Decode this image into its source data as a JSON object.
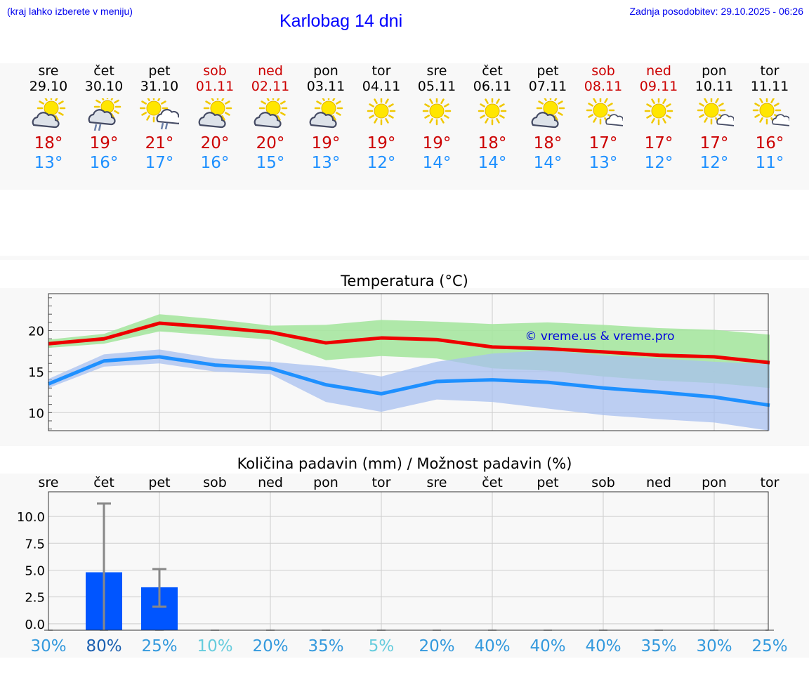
{
  "header": {
    "region_hint": "(kraj lahko izberete v meniju)",
    "title": "Karlobag 14 dni",
    "last_update": "Zadnja posodobitev: 29.10.2025 - 06:26"
  },
  "colors": {
    "link": "#0000ee",
    "weekend": "#cc0000",
    "max_line": "#ee0000",
    "min_line": "#1e90ff",
    "max_band": "#a6e6a0",
    "min_band": "#a8c0f0",
    "rain_bar": "#0055ff"
  },
  "days": [
    {
      "name": "sre",
      "date": "29.10",
      "weekend": false,
      "icon": "partly-cloudy-icon",
      "tmax": "18°",
      "tmin": "13°"
    },
    {
      "name": "čet",
      "date": "30.10",
      "weekend": false,
      "icon": "cloudy-rain-icon",
      "tmax": "19°",
      "tmin": "16°"
    },
    {
      "name": "pet",
      "date": "31.10",
      "weekend": false,
      "icon": "sun-cloud-rain-icon",
      "tmax": "21°",
      "tmin": "17°"
    },
    {
      "name": "sob",
      "date": "01.11",
      "weekend": true,
      "icon": "partly-cloudy-icon",
      "tmax": "20°",
      "tmin": "16°"
    },
    {
      "name": "ned",
      "date": "02.11",
      "weekend": true,
      "icon": "partly-cloudy-icon",
      "tmax": "20°",
      "tmin": "15°"
    },
    {
      "name": "pon",
      "date": "03.11",
      "weekend": false,
      "icon": "partly-cloudy-icon",
      "tmax": "19°",
      "tmin": "13°"
    },
    {
      "name": "tor",
      "date": "04.11",
      "weekend": false,
      "icon": "sun-icon",
      "tmax": "19°",
      "tmin": "12°"
    },
    {
      "name": "sre",
      "date": "05.11",
      "weekend": false,
      "icon": "sun-icon",
      "tmax": "19°",
      "tmin": "14°"
    },
    {
      "name": "čet",
      "date": "06.11",
      "weekend": false,
      "icon": "sun-icon",
      "tmax": "18°",
      "tmin": "14°"
    },
    {
      "name": "pet",
      "date": "07.11",
      "weekend": false,
      "icon": "partly-cloudy-icon",
      "tmax": "18°",
      "tmin": "14°"
    },
    {
      "name": "sob",
      "date": "08.11",
      "weekend": true,
      "icon": "sun-small-cloud-icon",
      "tmax": "17°",
      "tmin": "13°"
    },
    {
      "name": "ned",
      "date": "09.11",
      "weekend": true,
      "icon": "sun-icon",
      "tmax": "17°",
      "tmin": "12°"
    },
    {
      "name": "pon",
      "date": "10.11",
      "weekend": false,
      "icon": "sun-small-cloud-icon",
      "tmax": "17°",
      "tmin": "12°"
    },
    {
      "name": "tor",
      "date": "11.11",
      "weekend": false,
      "icon": "sun-small-cloud-icon",
      "tmax": "16°",
      "tmin": "11°"
    }
  ],
  "chart_data": [
    {
      "type": "line",
      "title": "Temperatura (°C)",
      "watermark": "© vreme.us & vreme.pro",
      "x_count": 14,
      "ylim": [
        7.8,
        24.5
      ],
      "yticks": [
        10,
        15,
        20
      ],
      "grid": true,
      "series": [
        {
          "name": "max",
          "values": [
            18.4,
            19.0,
            20.9,
            20.4,
            19.8,
            18.5,
            19.1,
            18.9,
            18.0,
            17.8,
            17.4,
            17.0,
            16.8,
            16.1
          ]
        },
        {
          "name": "min",
          "values": [
            13.5,
            16.3,
            16.8,
            15.8,
            15.4,
            13.4,
            12.3,
            13.8,
            14.0,
            13.7,
            13.0,
            12.5,
            11.9,
            10.9
          ]
        }
      ],
      "bands": [
        {
          "name": "max-range",
          "lower": [
            17.9,
            18.4,
            19.9,
            19.4,
            18.9,
            16.4,
            16.9,
            16.6,
            15.4,
            15.1,
            14.4,
            13.9,
            13.6,
            13.0
          ],
          "upper": [
            18.9,
            19.6,
            22.0,
            21.4,
            20.6,
            20.7,
            21.3,
            21.1,
            20.8,
            21.0,
            20.7,
            20.3,
            20.1,
            19.5
          ]
        },
        {
          "name": "min-range",
          "lower": [
            13.0,
            15.6,
            16.0,
            15.0,
            14.7,
            11.3,
            10.1,
            11.6,
            11.3,
            10.5,
            9.7,
            9.2,
            8.8,
            7.8
          ],
          "upper": [
            14.1,
            17.1,
            17.7,
            16.6,
            16.2,
            15.6,
            14.4,
            16.2,
            17.2,
            17.6,
            17.0,
            16.6,
            16.2,
            15.9
          ]
        }
      ]
    },
    {
      "type": "bar",
      "title": "Količina padavin (mm) / Možnost padavin (%)",
      "categories": [
        "sre",
        "čet",
        "pet",
        "sob",
        "ned",
        "pon",
        "tor",
        "sre",
        "čet",
        "pet",
        "sob",
        "ned",
        "pon",
        "tor"
      ],
      "ylim": [
        -0.6,
        12.3
      ],
      "yticks": [
        "0.0",
        "2.5",
        "5.0",
        "7.5",
        "10.0"
      ],
      "values": [
        0,
        4.8,
        3.4,
        0,
        0,
        0,
        0,
        0,
        0,
        0,
        0,
        0,
        0,
        0
      ],
      "error_low": [
        0,
        0,
        1.6,
        0,
        0,
        0,
        0,
        0,
        0,
        0,
        0,
        0,
        0,
        0
      ],
      "error_high": [
        0,
        11.2,
        5.1,
        0,
        0,
        0,
        0,
        0,
        0,
        0,
        0,
        0,
        0,
        0
      ],
      "probabilities": [
        "30%",
        "80%",
        "25%",
        "10%",
        "20%",
        "35%",
        "5%",
        "20%",
        "40%",
        "40%",
        "40%",
        "35%",
        "30%",
        "25%"
      ],
      "probability_colors": [
        "#3399dd",
        "#1a5fb0",
        "#3399dd",
        "#66ccdd",
        "#3399dd",
        "#3399dd",
        "#66ccdd",
        "#3399dd",
        "#3399dd",
        "#3399dd",
        "#3399dd",
        "#3399dd",
        "#3399dd",
        "#3399dd"
      ]
    }
  ]
}
